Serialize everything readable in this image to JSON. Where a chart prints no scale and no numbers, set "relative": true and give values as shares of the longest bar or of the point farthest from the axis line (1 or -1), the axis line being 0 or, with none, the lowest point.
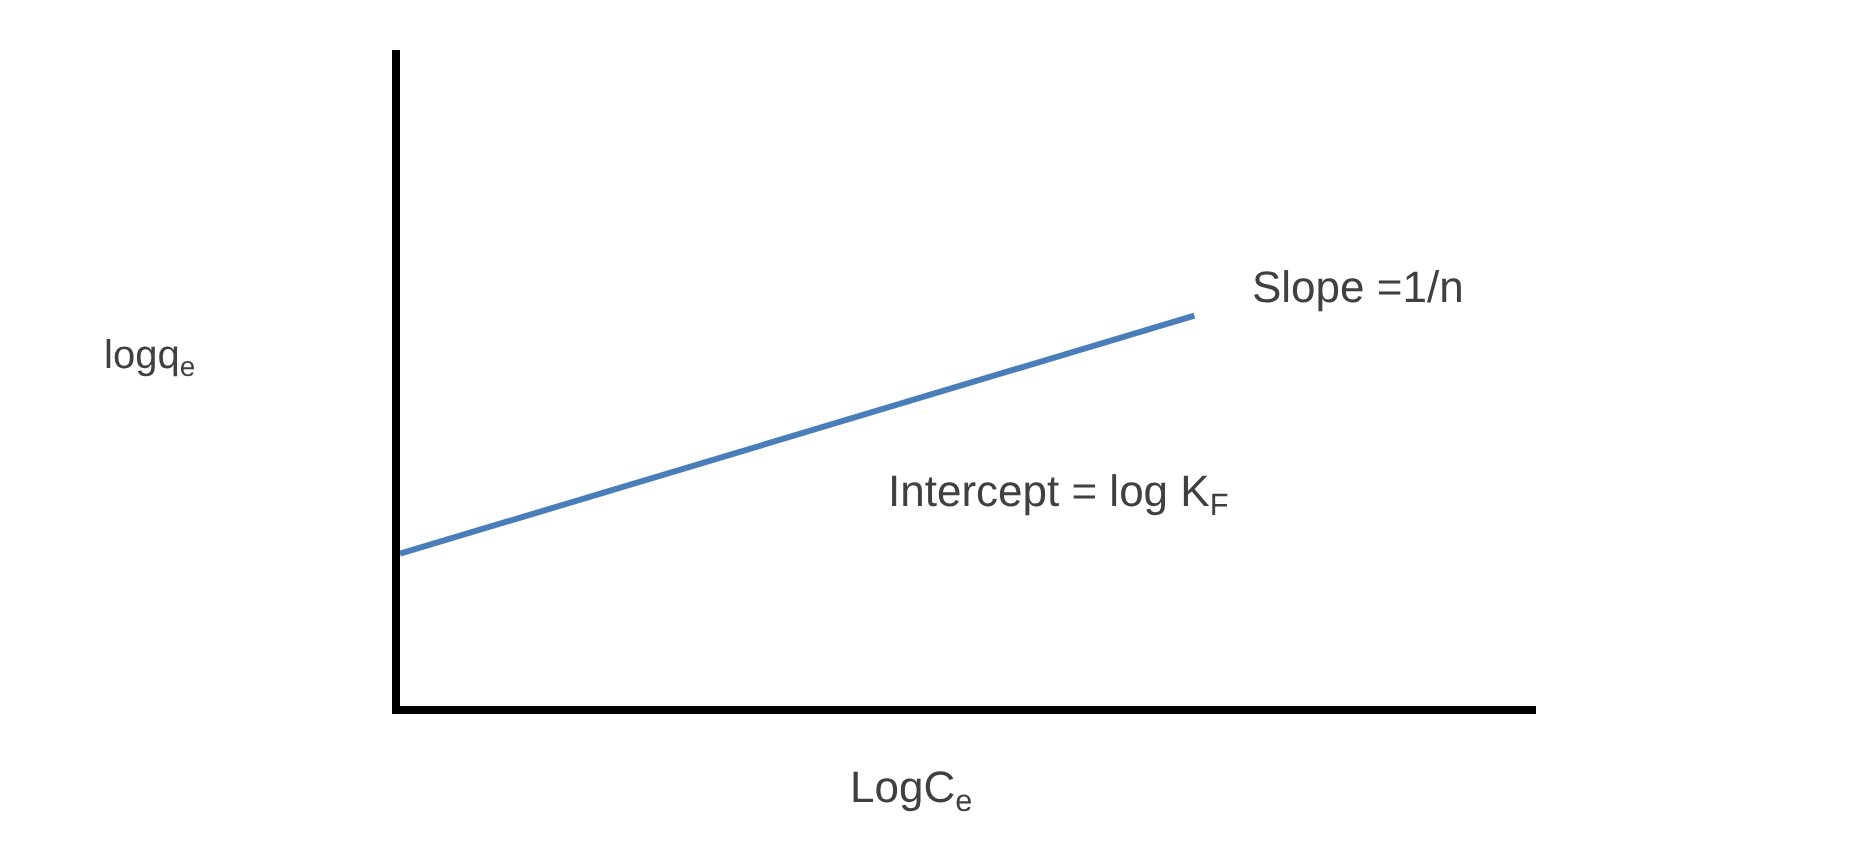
{
  "chart_data": {
    "type": "line",
    "relative": true,
    "xlabel": "LogC$_{e}$",
    "ylabel": "logq$_{e}$",
    "categories": [
      null,
      null
    ],
    "series": [
      {
        "color": "#4a7ebb",
        "values": [
          0.39,
          1
        ]
      }
    ],
    "annotations": [
      "Slope =1/n",
      "Intercept = log K$_{F}$"
    ],
    "legend": false,
    "marker": "none",
    "line_style": "solid"
  }
}
